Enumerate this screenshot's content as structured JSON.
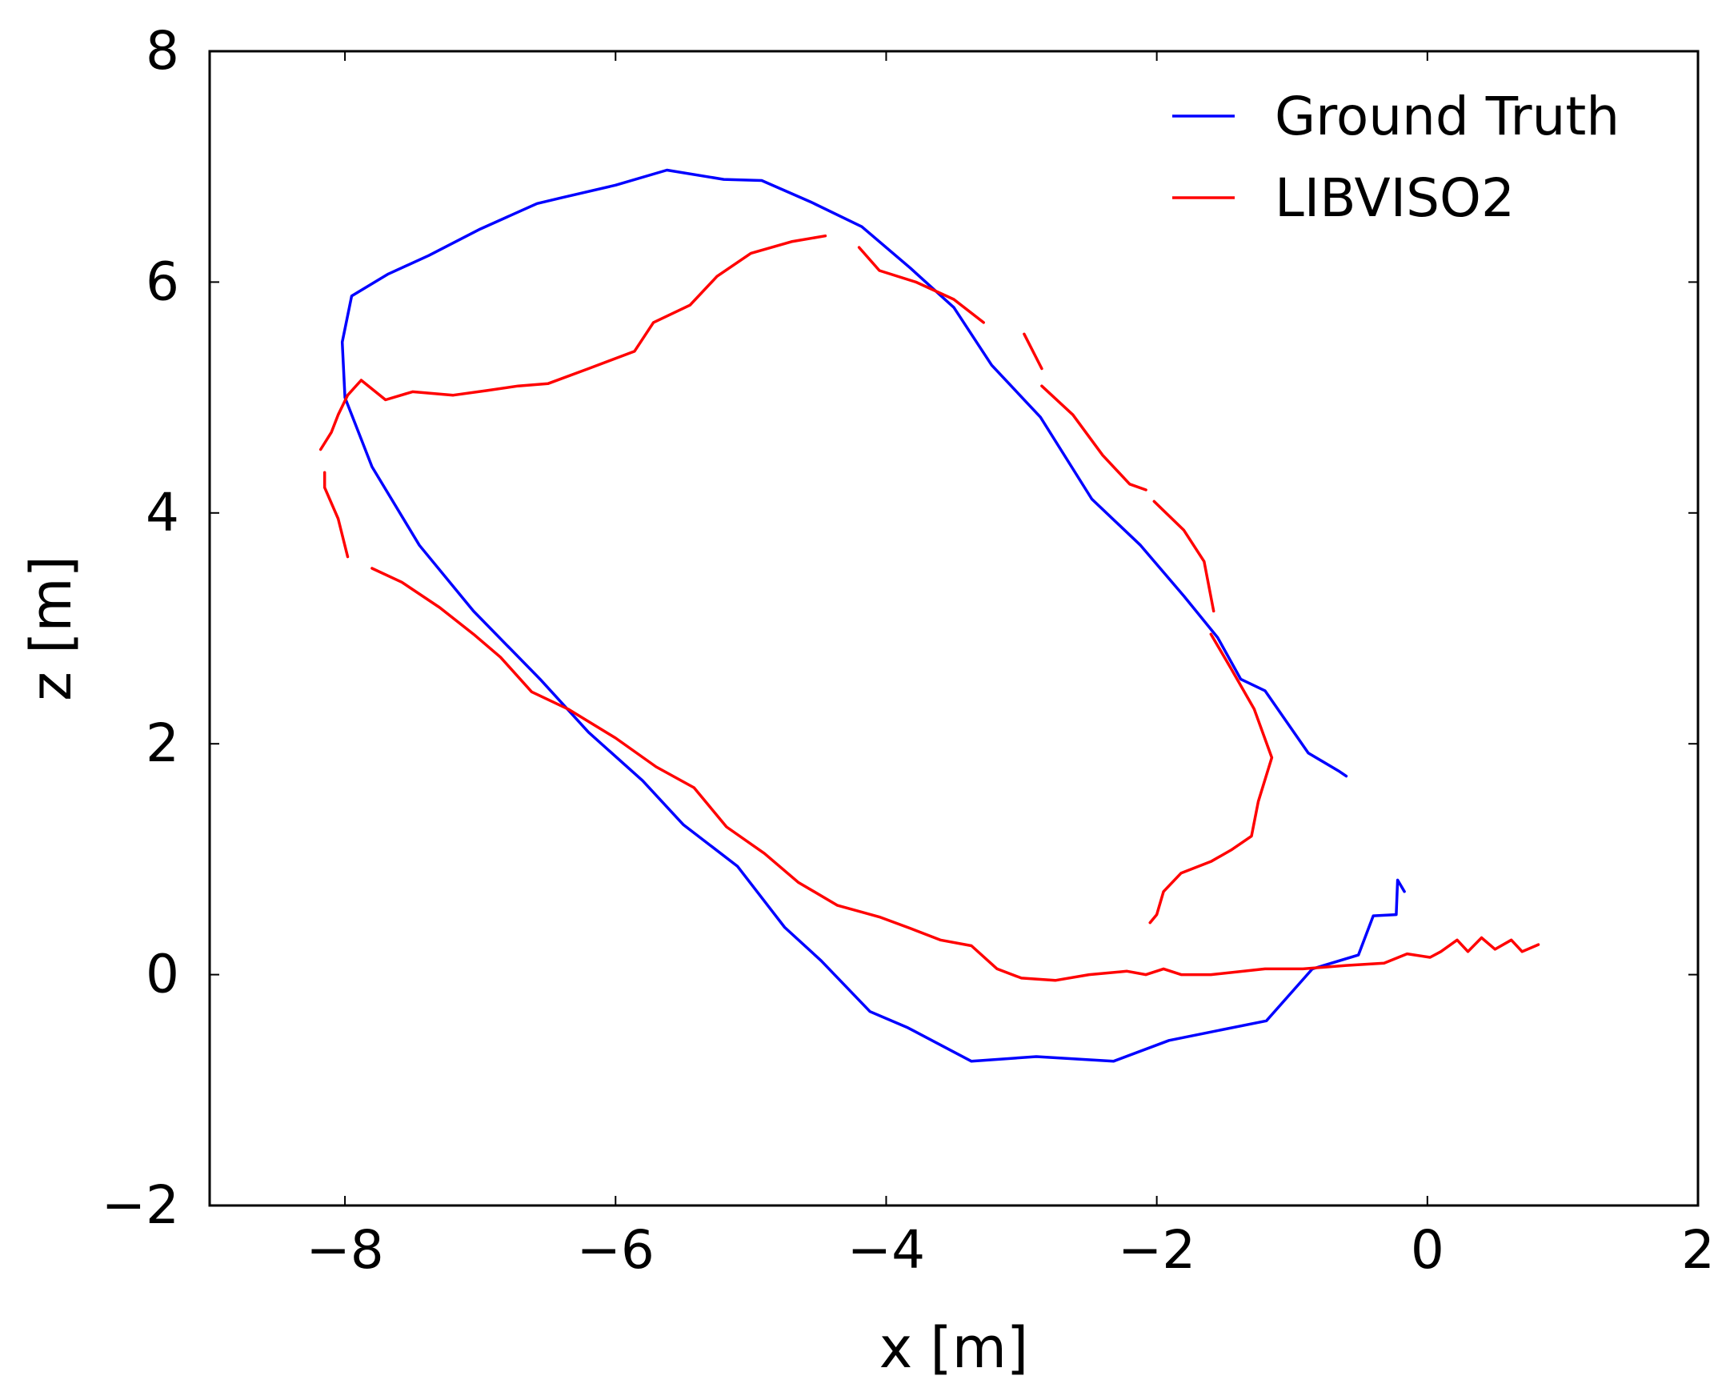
{
  "chart_data": {
    "type": "line",
    "title": "",
    "xlabel": "x [m]",
    "ylabel": "z [m]",
    "xlim": [
      -9,
      2
    ],
    "ylim": [
      -2,
      8
    ],
    "xticks": [
      -8,
      -6,
      -4,
      -2,
      0,
      2
    ],
    "yticks": [
      -2,
      0,
      2,
      4,
      6,
      8
    ],
    "xtick_labels": [
      "−8",
      "−6",
      "−4",
      "−2",
      "0",
      "2"
    ],
    "ytick_labels": [
      "−2",
      "0",
      "2",
      "4",
      "6",
      "8"
    ],
    "grid": false,
    "legend_position": "top-right",
    "series": [
      {
        "name": "Ground Truth",
        "color": "#0000ff",
        "segments": [
          [
            [
              -0.17,
              0.72
            ],
            [
              -0.22,
              0.82
            ],
            [
              -0.23,
              0.52
            ],
            [
              -0.4,
              0.51
            ],
            [
              -0.51,
              0.17
            ],
            [
              -0.85,
              0.05
            ],
            [
              -1.19,
              -0.4
            ],
            [
              -1.91,
              -0.57
            ],
            [
              -2.32,
              -0.75
            ],
            [
              -2.89,
              -0.71
            ],
            [
              -3.37,
              -0.75
            ],
            [
              -3.84,
              -0.46
            ],
            [
              -4.12,
              -0.32
            ],
            [
              -4.48,
              0.12
            ],
            [
              -4.75,
              0.41
            ],
            [
              -5.1,
              0.94
            ],
            [
              -5.5,
              1.3
            ],
            [
              -5.8,
              1.68
            ],
            [
              -6.2,
              2.1
            ],
            [
              -6.55,
              2.55
            ],
            [
              -7.05,
              3.15
            ],
            [
              -7.45,
              3.72
            ],
            [
              -7.8,
              4.4
            ],
            [
              -8.0,
              5.0
            ],
            [
              -8.02,
              5.48
            ],
            [
              -7.95,
              5.88
            ],
            [
              -7.68,
              6.07
            ],
            [
              -7.38,
              6.23
            ],
            [
              -7.0,
              6.46
            ],
            [
              -6.58,
              6.68
            ],
            [
              -6.4,
              6.73
            ],
            [
              -6.0,
              6.84
            ],
            [
              -5.62,
              6.97
            ],
            [
              -5.2,
              6.89
            ],
            [
              -4.92,
              6.88
            ],
            [
              -4.55,
              6.69
            ],
            [
              -4.18,
              6.48
            ],
            [
              -3.82,
              6.12
            ],
            [
              -3.5,
              5.78
            ],
            [
              -3.22,
              5.28
            ],
            [
              -2.86,
              4.83
            ],
            [
              -2.48,
              4.12
            ],
            [
              -2.12,
              3.72
            ],
            [
              -1.8,
              3.28
            ],
            [
              -1.55,
              2.92
            ],
            [
              -1.38,
              2.56
            ],
            [
              -1.2,
              2.46
            ],
            [
              -0.88,
              1.92
            ],
            [
              -0.65,
              1.76
            ],
            [
              -0.6,
              1.72
            ]
          ]
        ]
      },
      {
        "name": "LIBVISO2",
        "color": "#ff0000",
        "segments": [
          [
            [
              0.82,
              0.26
            ],
            [
              0.7,
              0.2
            ],
            [
              0.62,
              0.3
            ],
            [
              0.5,
              0.22
            ],
            [
              0.4,
              0.32
            ],
            [
              0.3,
              0.2
            ],
            [
              0.22,
              0.3
            ],
            [
              0.1,
              0.2
            ],
            [
              0.02,
              0.15
            ],
            [
              -0.15,
              0.18
            ],
            [
              -0.32,
              0.1
            ],
            [
              -0.6,
              0.08
            ],
            [
              -0.92,
              0.05
            ],
            [
              -1.2,
              0.05
            ],
            [
              -1.6,
              0.0
            ],
            [
              -1.82,
              0.0
            ],
            [
              -1.95,
              0.05
            ],
            [
              -2.08,
              0.0
            ],
            [
              -2.22,
              0.03
            ],
            [
              -2.5,
              0.0
            ],
            [
              -2.75,
              -0.05
            ],
            [
              -3.0,
              -0.03
            ],
            [
              -3.18,
              0.05
            ],
            [
              -3.37,
              0.25
            ],
            [
              -3.6,
              0.3
            ],
            [
              -3.82,
              0.4
            ],
            [
              -4.05,
              0.5
            ],
            [
              -4.36,
              0.6
            ],
            [
              -4.65,
              0.8
            ],
            [
              -4.9,
              1.05
            ],
            [
              -5.18,
              1.28
            ],
            [
              -5.42,
              1.62
            ],
            [
              -5.7,
              1.8
            ],
            [
              -6.0,
              2.05
            ],
            [
              -6.35,
              2.3
            ],
            [
              -6.62,
              2.45
            ],
            [
              -6.85,
              2.75
            ],
            [
              -7.05,
              2.95
            ],
            [
              -7.3,
              3.18
            ],
            [
              -7.58,
              3.4
            ],
            [
              -7.8,
              3.52
            ]
          ],
          [
            [
              -7.98,
              3.62
            ],
            [
              -8.05,
              3.95
            ],
            [
              -8.15,
              4.22
            ],
            [
              -8.15,
              4.35
            ]
          ],
          [
            [
              -8.18,
              4.55
            ],
            [
              -8.1,
              4.7
            ],
            [
              -8.05,
              4.85
            ],
            [
              -7.98,
              5.02
            ],
            [
              -7.88,
              5.15
            ],
            [
              -7.7,
              4.98
            ],
            [
              -7.5,
              5.05
            ],
            [
              -7.2,
              5.02
            ],
            [
              -6.95,
              5.06
            ],
            [
              -6.72,
              5.1
            ],
            [
              -6.5,
              5.12
            ],
            [
              -6.2,
              5.25
            ],
            [
              -5.86,
              5.4
            ],
            [
              -5.72,
              5.65
            ],
            [
              -5.45,
              5.8
            ],
            [
              -5.25,
              6.05
            ],
            [
              -5.0,
              6.25
            ],
            [
              -4.7,
              6.35
            ],
            [
              -4.45,
              6.4
            ]
          ],
          [
            [
              -4.2,
              6.3
            ],
            [
              -4.05,
              6.1
            ],
            [
              -3.78,
              6.0
            ],
            [
              -3.5,
              5.85
            ],
            [
              -3.28,
              5.65
            ]
          ],
          [
            [
              -2.98,
              5.55
            ],
            [
              -2.85,
              5.25
            ]
          ],
          [
            [
              -2.85,
              5.1
            ],
            [
              -2.62,
              4.85
            ],
            [
              -2.4,
              4.5
            ],
            [
              -2.2,
              4.25
            ],
            [
              -2.08,
              4.2
            ]
          ],
          [
            [
              -2.02,
              4.1
            ],
            [
              -1.8,
              3.85
            ],
            [
              -1.65,
              3.58
            ],
            [
              -1.58,
              3.15
            ]
          ],
          [
            [
              -1.6,
              2.95
            ],
            [
              -1.45,
              2.65
            ],
            [
              -1.28,
              2.3
            ],
            [
              -1.15,
              1.88
            ],
            [
              -1.25,
              1.5
            ],
            [
              -1.3,
              1.2
            ],
            [
              -1.45,
              1.08
            ],
            [
              -1.6,
              0.98
            ],
            [
              -1.82,
              0.88
            ],
            [
              -1.95,
              0.72
            ],
            [
              -2.0,
              0.52
            ],
            [
              -2.05,
              0.45
            ]
          ]
        ]
      }
    ]
  }
}
